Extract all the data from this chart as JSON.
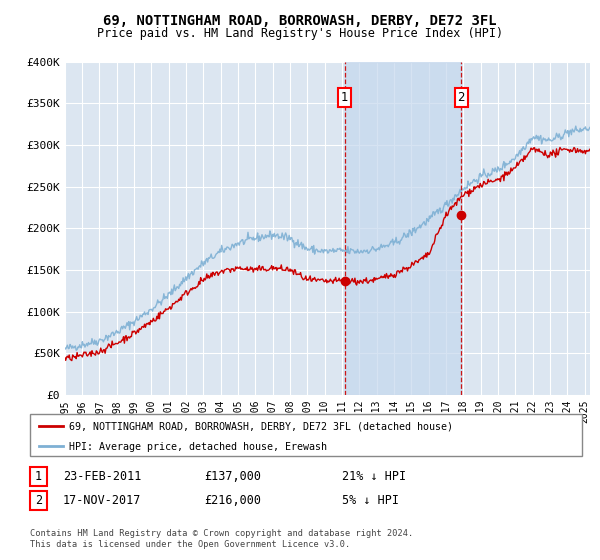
{
  "title": "69, NOTTINGHAM ROAD, BORROWASH, DERBY, DE72 3FL",
  "subtitle": "Price paid vs. HM Land Registry's House Price Index (HPI)",
  "background_color": "#ffffff",
  "plot_bg_color": "#dce6f1",
  "grid_color": "#ffffff",
  "hpi_color": "#7eb0d4",
  "price_color": "#cc0000",
  "shade_color": "#c5d8ed",
  "marker1_year": 2011.15,
  "marker2_year": 2017.88,
  "marker1_price": 137000,
  "marker2_price": 216000,
  "ylim": [
    0,
    400000
  ],
  "xlim_start": 1995,
  "xlim_end": 2025.3,
  "yticks": [
    0,
    50000,
    100000,
    150000,
    200000,
    250000,
    300000,
    350000,
    400000
  ],
  "ylabels": [
    "£0",
    "£50K",
    "£100K",
    "£150K",
    "£200K",
    "£250K",
    "£300K",
    "£350K",
    "£400K"
  ],
  "legend_label_price": "69, NOTTINGHAM ROAD, BORROWASH, DERBY, DE72 3FL (detached house)",
  "legend_label_hpi": "HPI: Average price, detached house, Erewash",
  "annotation1_date": "23-FEB-2011",
  "annotation1_price": "£137,000",
  "annotation1_pct": "21% ↓ HPI",
  "annotation2_date": "17-NOV-2017",
  "annotation2_price": "£216,000",
  "annotation2_pct": "5% ↓ HPI",
  "footer": "Contains HM Land Registry data © Crown copyright and database right 2024.\nThis data is licensed under the Open Government Licence v3.0."
}
